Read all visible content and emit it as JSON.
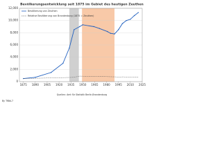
{
  "chart_data": {
    "type": "line",
    "title": "Bevölkerungsentwicklung seit 1875 im Gebiet des heutigen Zeuthen",
    "x": [
      1875,
      1890,
      1910,
      1925,
      1933,
      1939,
      1946,
      1950,
      1964,
      1971,
      1981,
      1985,
      1990,
      1995,
      2000,
      2005,
      2010,
      2015,
      2020
    ],
    "series": [
      {
        "name": "Bevölkerung von Zeuthen",
        "color": "#1f5fbf",
        "dash": false,
        "values": [
          500,
          700,
          1500,
          3000,
          5500,
          8500,
          9000,
          9300,
          9000,
          8700,
          8200,
          7900,
          7800,
          8500,
          9500,
          10000,
          10200,
          10800,
          11300
        ]
      },
      {
        "name": "Relative Bevölkerung von Brandenburg (1875 = Zeuthen)",
        "color": "#555555",
        "dash": true,
        "values": [
          500,
          540,
          620,
          650,
          680,
          720,
          900,
          880,
          840,
          830,
          820,
          800,
          780,
          750,
          770,
          760,
          740,
          730,
          730
        ]
      }
    ],
    "shaded_periods": [
      {
        "start": 1933,
        "end": 1945,
        "color": "#d0d0d0"
      },
      {
        "start": 1949,
        "end": 1990,
        "color": "#f8c9a8"
      }
    ],
    "xlim": [
      1870,
      2025
    ],
    "xticks": [
      1875,
      1890,
      1905,
      1920,
      1935,
      1950,
      1965,
      1980,
      1995,
      2010,
      2025
    ],
    "ylim": [
      0,
      12000
    ],
    "yticks": [
      0,
      {
        "value": 2000,
        "label": "2,000"
      },
      {
        "value": 4000,
        "label": "4,000"
      },
      {
        "value": 6000,
        "label": "6,000"
      },
      {
        "value": 8000,
        "label": "8,000"
      },
      {
        "value": 10000,
        "label": "10,000"
      },
      {
        "value": 12000,
        "label": "12,000"
      }
    ],
    "grid": true,
    "source": "Quellen: Amt für Statistik Berlin-Brandenburg",
    "author": "By Tf8bL7"
  }
}
